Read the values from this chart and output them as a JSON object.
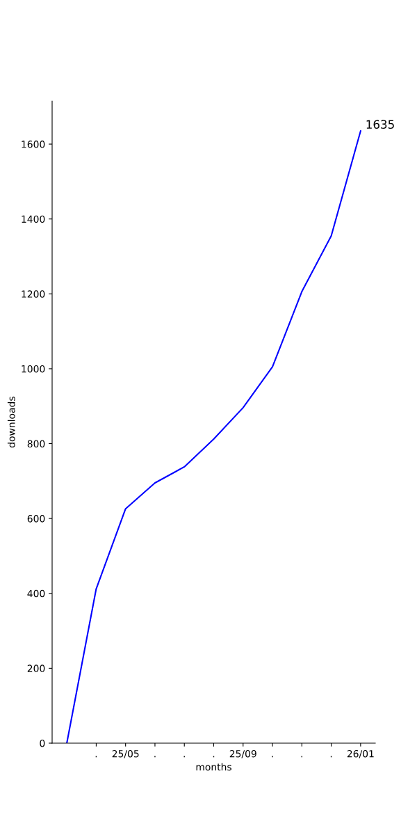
{
  "chart_data": {
    "type": "line",
    "xlabel": "months",
    "ylabel": "downloads",
    "categories": [
      null,
      ".",
      "25/05",
      ".",
      ".",
      ".",
      "25/09",
      ".",
      ".",
      ".",
      "26/01"
    ],
    "series": [
      {
        "color": "#0000ff",
        "values": [
          0,
          412,
          626,
          695,
          738,
          812,
          896,
          1005,
          1206,
          1355,
          1635
        ]
      }
    ],
    "ylim": [
      0,
      1715
    ],
    "yticks": [
      0,
      200,
      400,
      600,
      800,
      1000,
      1200,
      1400,
      1600
    ],
    "annotations": [
      {
        "text": "1635",
        "x": "26/01",
        "y": 1635
      }
    ],
    "grid": false,
    "legend": false
  }
}
